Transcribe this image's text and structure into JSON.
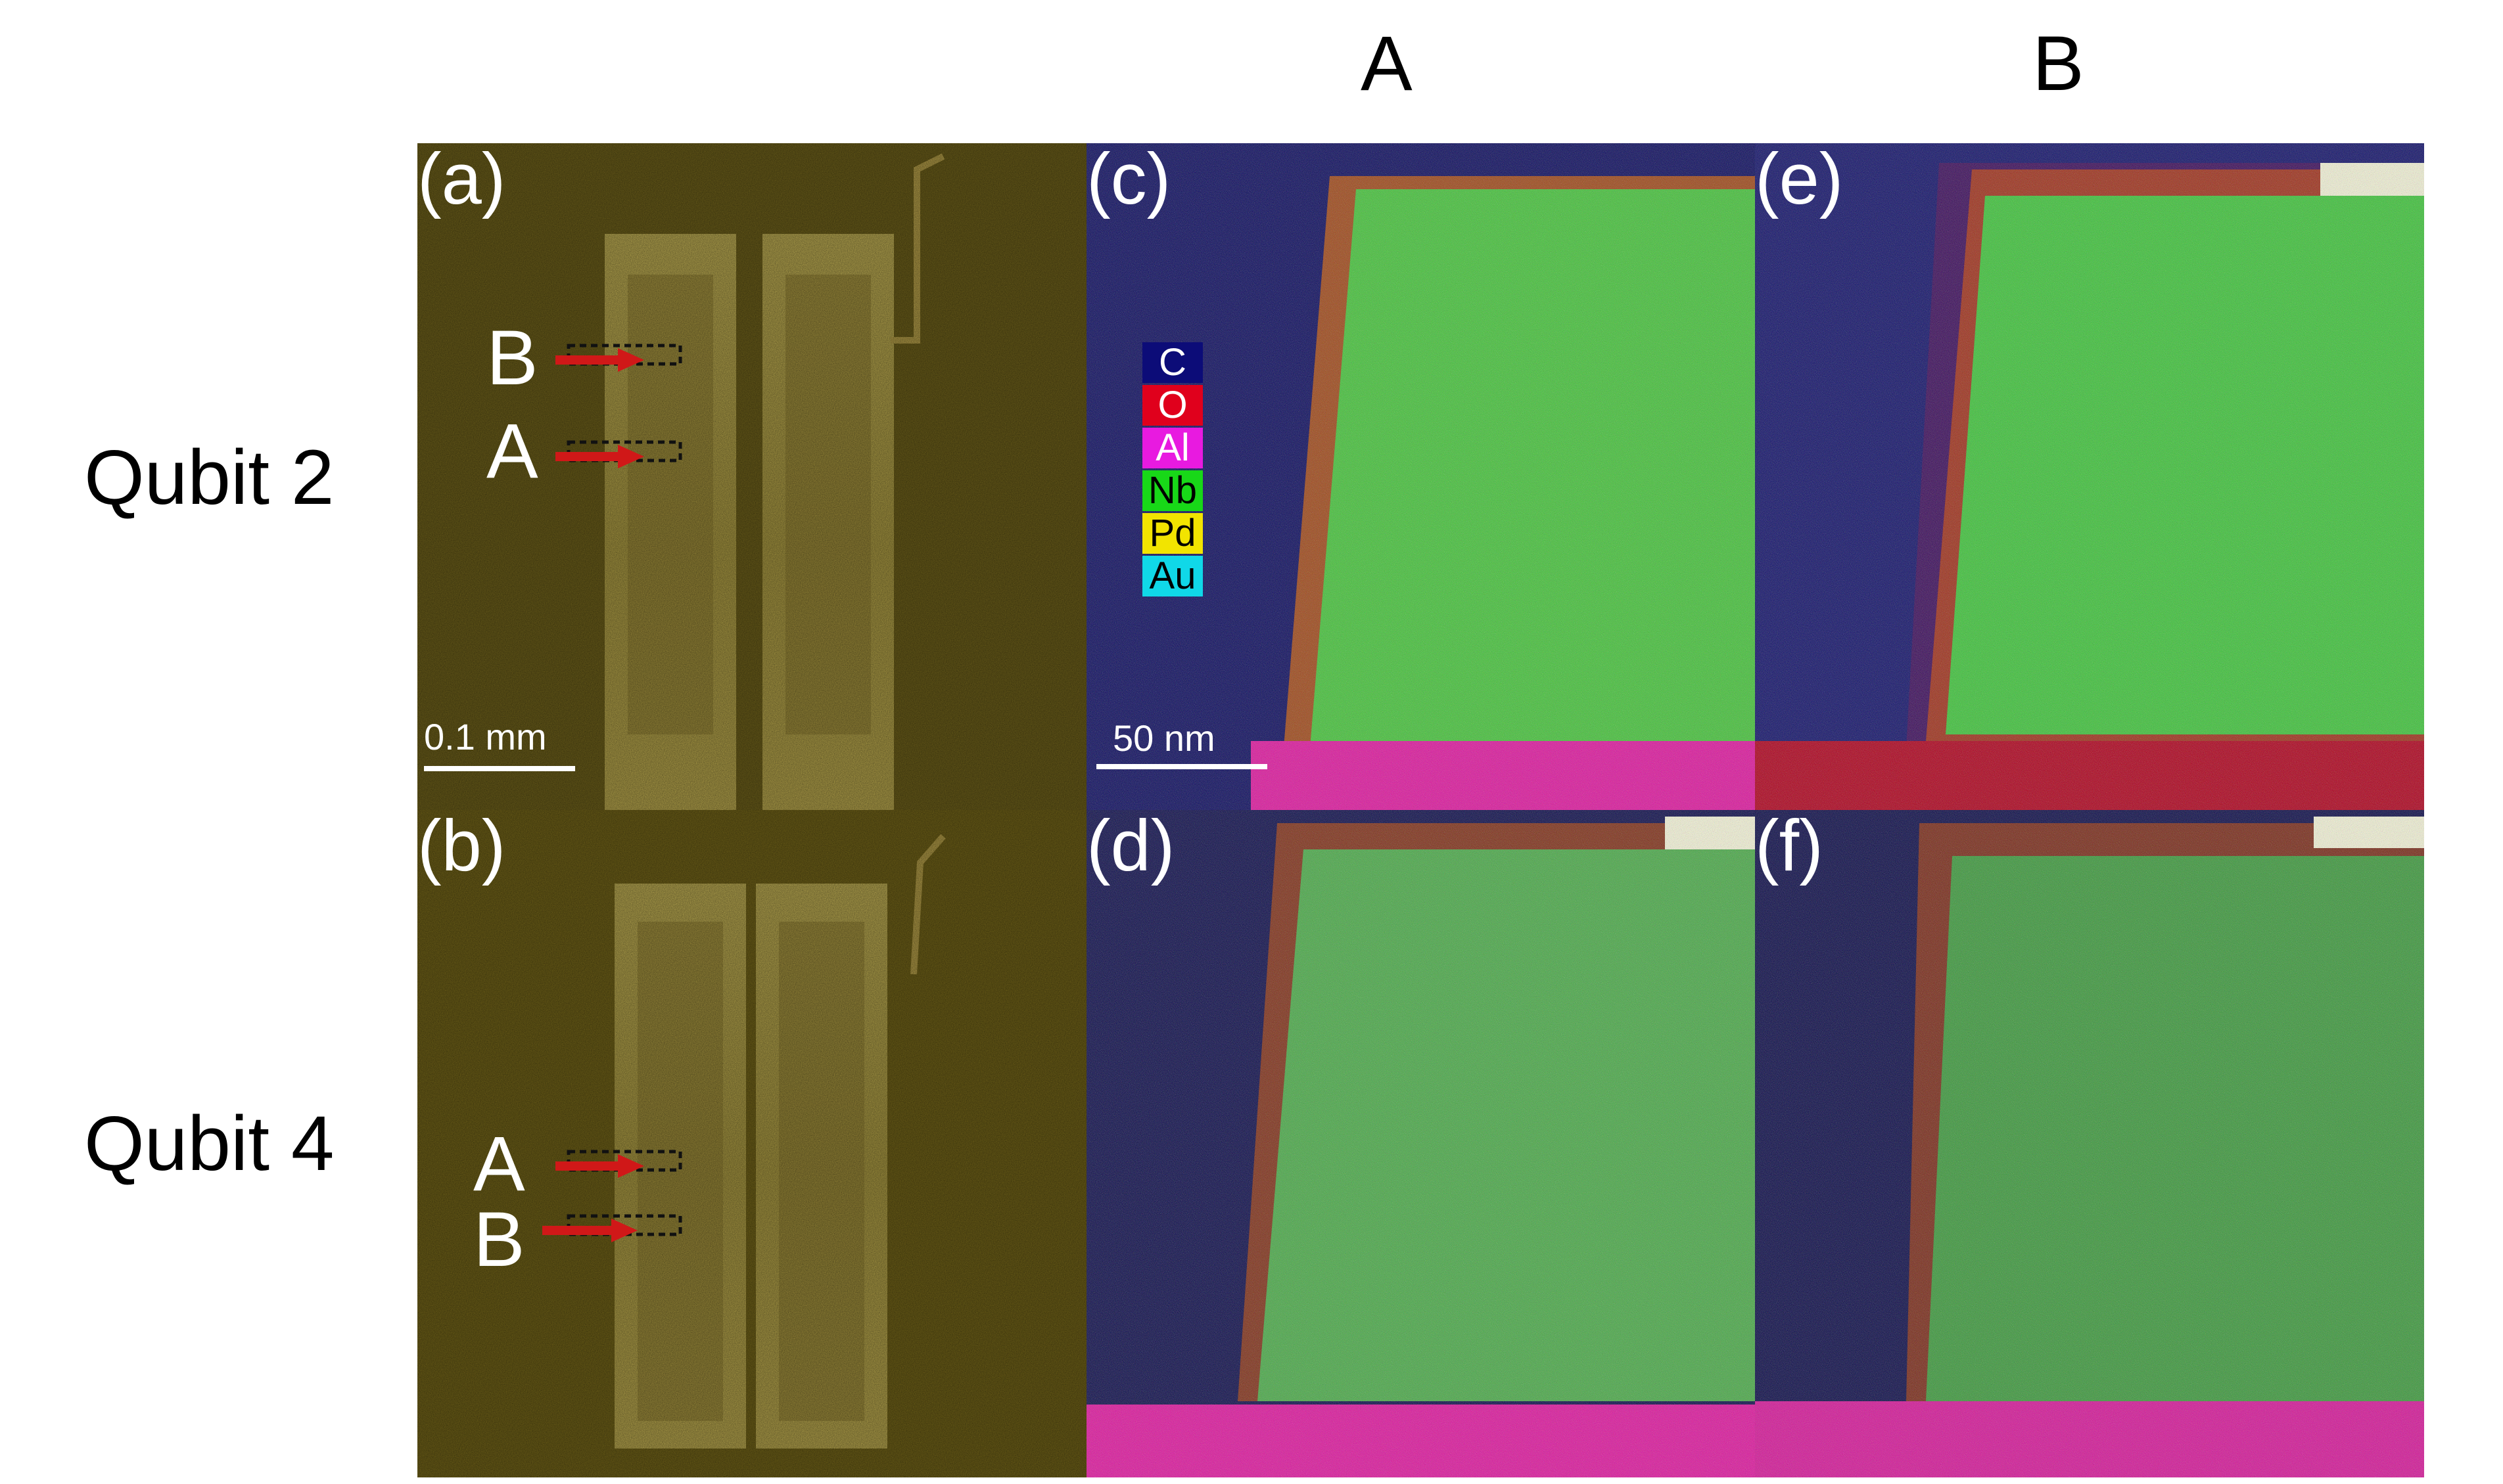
{
  "column_headers": {
    "A": "A",
    "B": "B"
  },
  "row_headers": {
    "qubit2": "Qubit 2",
    "qubit4": "Qubit 4"
  },
  "panels": {
    "a": {
      "label": "(a)",
      "marker_top": "B",
      "marker_bottom": "A",
      "scale": "0.1 mm"
    },
    "b": {
      "label": "(b)",
      "marker_top": "A",
      "marker_bottom": "B"
    },
    "c": {
      "label": "(c)",
      "scale": "50 nm"
    },
    "d": {
      "label": "(d)"
    },
    "e": {
      "label": "(e)"
    },
    "f": {
      "label": "(f)"
    }
  },
  "legend": [
    {
      "element": "C",
      "color": "#0c0c78"
    },
    {
      "element": "O",
      "color": "#e0001c"
    },
    {
      "element": "Al",
      "color": "#e81ae0"
    },
    {
      "element": "Nb",
      "color": "#18d818"
    },
    {
      "element": "Pd",
      "color": "#f2e400"
    },
    {
      "element": "Au",
      "color": "#10d8e8"
    }
  ],
  "colors": {
    "optical_bg": "#6b5e1a",
    "carbon": "#0a0a5e",
    "oxide": "#c8001e",
    "aluminum": "#e0159f",
    "niobium": "#3fc43c",
    "arrow": "#d01818"
  }
}
